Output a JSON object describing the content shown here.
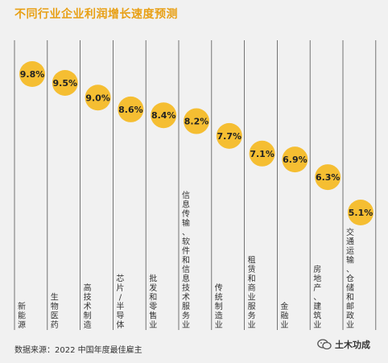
{
  "title": "不同行业企业利润增长速度预测",
  "source": "数据来源：2022 中国年度最佳雇主",
  "watermark": "土木功成",
  "chart_data": {
    "type": "scatter",
    "title": "不同行业企业利润增长速度预测",
    "categories": [
      "新能源",
      "生物医药",
      "高技术制造",
      "芯片/半导体",
      "批发和零售业",
      "信息传输、软件和信息技术服务业",
      "传统制造业",
      "租赁和商业服务业",
      "金融业",
      "房地产、建筑业",
      "交通运输、仓储和邮政业"
    ],
    "values": [
      9.8,
      9.5,
      9.0,
      8.6,
      8.4,
      8.2,
      7.7,
      7.1,
      6.9,
      6.3,
      5.1
    ],
    "value_labels": [
      "9.8%",
      "9.5%",
      "9.0%",
      "8.6%",
      "8.4%",
      "8.2%",
      "7.7%",
      "7.1%",
      "6.9%",
      "6.3%",
      "5.1%"
    ],
    "ylim": [
      5.1,
      9.8
    ],
    "marker_color": "#f5be32",
    "divider_color": "#555555",
    "grid": false
  }
}
